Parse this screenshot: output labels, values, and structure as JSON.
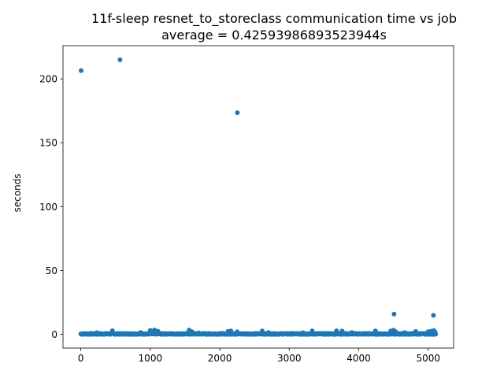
{
  "chart_data": {
    "type": "scatter",
    "title": "11f-sleep resnet_to_storeclass communication time vs job",
    "subtitle": "average = 0.42593986893523944s",
    "xlabel": "",
    "ylabel": "seconds",
    "xlim": [
      -256,
      5365
    ],
    "ylim": [
      -10.8,
      226
    ],
    "x_ticks": [
      0,
      1000,
      2000,
      3000,
      4000,
      5000
    ],
    "x_tick_labels": [
      "0",
      "1000",
      "2000",
      "3000",
      "4000",
      "5000"
    ],
    "y_ticks": [
      0,
      50,
      100,
      150,
      200
    ],
    "y_tick_labels": [
      "0",
      "50",
      "100",
      "150",
      "200"
    ],
    "grid": false,
    "color": "#1f77b4",
    "series": [
      {
        "x_range": [
          0,
          5109
        ],
        "baseline_value": 0.3,
        "points": [
          [
            5,
            206.5
          ],
          [
            564,
            215.0
          ],
          [
            2253,
            173.5
          ],
          [
            4508,
            15.8
          ],
          [
            5075,
            14.8
          ],
          [
            455,
            2.8
          ],
          [
            1000,
            3.0
          ],
          [
            1060,
            3.3
          ],
          [
            1110,
            2.4
          ],
          [
            1560,
            3.2
          ],
          [
            1600,
            2.0
          ],
          [
            2120,
            2.3
          ],
          [
            2160,
            2.6
          ],
          [
            2250,
            1.9
          ],
          [
            2610,
            2.6
          ],
          [
            3330,
            2.6
          ],
          [
            3680,
            2.7
          ],
          [
            3760,
            2.5
          ],
          [
            4240,
            2.6
          ],
          [
            4460,
            2.5
          ],
          [
            4500,
            3.2
          ],
          [
            4530,
            2.1
          ],
          [
            4820,
            2.2
          ],
          [
            5000,
            2.0
          ],
          [
            5040,
            2.4
          ],
          [
            5080,
            2.9
          ],
          [
            230,
            1.2
          ],
          [
            860,
            1.4
          ],
          [
            1700,
            1.1
          ],
          [
            2700,
            1.4
          ],
          [
            3200,
            1.2
          ],
          [
            3900,
            1.4
          ],
          [
            4660,
            1.3
          ],
          [
            5100,
            1.6
          ]
        ]
      }
    ]
  }
}
